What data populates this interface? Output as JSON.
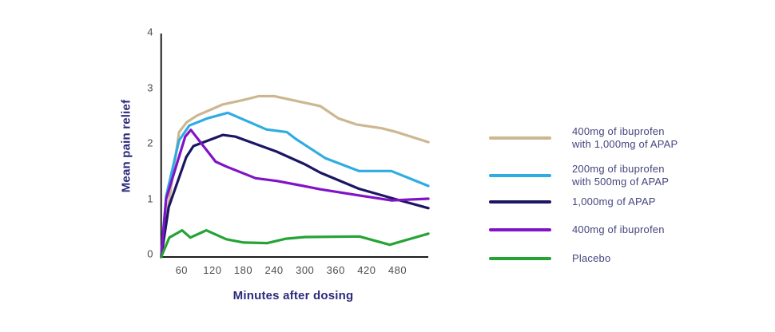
{
  "chart_data": {
    "type": "line",
    "xlabel": "Minutes after dosing",
    "ylabel": "Mean pain relief",
    "x_ticks": [
      60,
      120,
      180,
      240,
      300,
      360,
      420,
      480
    ],
    "y_ticks": [
      0,
      1,
      2,
      3,
      4
    ],
    "xlim": [
      0,
      540
    ],
    "ylim": [
      0,
      4
    ],
    "grid": false,
    "legend_position": "right",
    "series": [
      {
        "name": "ibuprofen-400-apap-1000",
        "label_lines": [
          "400mg of ibuprofen",
          "with 1,000mg of APAP"
        ],
        "color": "#cdb791",
        "points": [
          [
            0,
            0
          ],
          [
            30,
            0.65
          ],
          [
            45,
            1.6
          ],
          [
            55,
            2.25
          ],
          [
            70,
            2.43
          ],
          [
            90,
            2.55
          ],
          [
            140,
            2.75
          ],
          [
            180,
            2.83
          ],
          [
            210,
            2.9
          ],
          [
            240,
            2.9
          ],
          [
            290,
            2.8
          ],
          [
            330,
            2.72
          ],
          [
            365,
            2.5
          ],
          [
            400,
            2.39
          ],
          [
            450,
            2.32
          ],
          [
            475,
            2.26
          ],
          [
            540,
            2.07
          ]
        ]
      },
      {
        "name": "ibuprofen-200-apap-500",
        "label_lines": [
          "200mg of ibuprofen",
          "with 500mg of APAP"
        ],
        "color": "#2face2",
        "points": [
          [
            0,
            0
          ],
          [
            30,
            1.1
          ],
          [
            55,
            2.1
          ],
          [
            75,
            2.37
          ],
          [
            110,
            2.5
          ],
          [
            150,
            2.6
          ],
          [
            225,
            2.3
          ],
          [
            265,
            2.25
          ],
          [
            282,
            2.13
          ],
          [
            340,
            1.78
          ],
          [
            405,
            1.55
          ],
          [
            468,
            1.55
          ],
          [
            540,
            1.28
          ]
        ]
      },
      {
        "name": "apap-1000",
        "label_lines": [
          "1,000mg of APAP"
        ],
        "color": "#1b1663",
        "points": [
          [
            0,
            0
          ],
          [
            35,
            0.9
          ],
          [
            69,
            1.8
          ],
          [
            83,
            2.0
          ],
          [
            140,
            2.2
          ],
          [
            165,
            2.17
          ],
          [
            245,
            1.9
          ],
          [
            300,
            1.67
          ],
          [
            330,
            1.52
          ],
          [
            405,
            1.23
          ],
          [
            473,
            1.05
          ],
          [
            540,
            0.88
          ]
        ]
      },
      {
        "name": "ibuprofen-400",
        "label_lines": [
          "400mg of ibuprofen"
        ],
        "color": "#8013c6",
        "points": [
          [
            0,
            0
          ],
          [
            30,
            1.05
          ],
          [
            67,
            2.17
          ],
          [
            78,
            2.29
          ],
          [
            126,
            1.72
          ],
          [
            147,
            1.63
          ],
          [
            204,
            1.42
          ],
          [
            246,
            1.37
          ],
          [
            297,
            1.28
          ],
          [
            330,
            1.22
          ],
          [
            406,
            1.11
          ],
          [
            468,
            1.02
          ],
          [
            540,
            1.05
          ]
        ]
      },
      {
        "name": "placebo",
        "label_lines": [
          "Placebo"
        ],
        "color": "#25a335",
        "points": [
          [
            0,
            0
          ],
          [
            36,
            0.35
          ],
          [
            61,
            0.48
          ],
          [
            77,
            0.35
          ],
          [
            108,
            0.48
          ],
          [
            147,
            0.32
          ],
          [
            181,
            0.26
          ],
          [
            227,
            0.25
          ],
          [
            263,
            0.33
          ],
          [
            300,
            0.36
          ],
          [
            406,
            0.37
          ],
          [
            465,
            0.22
          ],
          [
            540,
            0.42
          ]
        ]
      }
    ],
    "axis_color": "#1c1c1c",
    "tick_label_color": "#4d4d4d",
    "axis_title_color": "#2b2a7c",
    "legend_text_color": "#45457e"
  }
}
